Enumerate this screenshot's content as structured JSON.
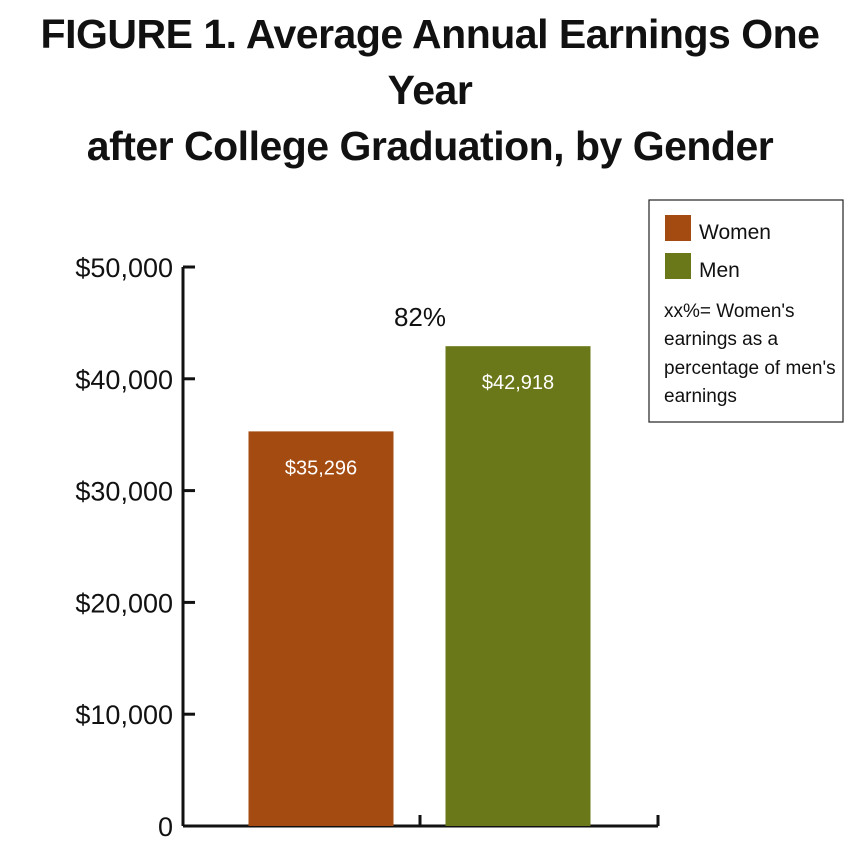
{
  "chart_data": {
    "type": "bar",
    "title_line1": "FIGURE 1. Average Annual Earnings One Year",
    "title_line2": "after College Graduation, by Gender",
    "categories": [
      "Women",
      "Men"
    ],
    "values": [
      35296,
      42918
    ],
    "value_labels": [
      "$35,296",
      "$42,918"
    ],
    "colors": [
      "#a44b11",
      "#6a7819"
    ],
    "ratio_label": "82%",
    "ylim": [
      0,
      50000
    ],
    "yticks": [
      0,
      10000,
      20000,
      30000,
      40000,
      50000
    ],
    "ytick_labels": [
      "0",
      "$10,000",
      "$20,000",
      "$30,000",
      "$40,000",
      "$50,000"
    ],
    "xlabel": "",
    "ylabel": "",
    "grid": false,
    "legend": {
      "placement": "top-right",
      "entries": [
        {
          "label": "Women",
          "color": "#a44b11"
        },
        {
          "label": "Men",
          "color": "#6a7819"
        }
      ],
      "note_lines": [
        "xx%= Women's",
        "earnings as a",
        "percentage of men's",
        "earnings"
      ]
    }
  }
}
